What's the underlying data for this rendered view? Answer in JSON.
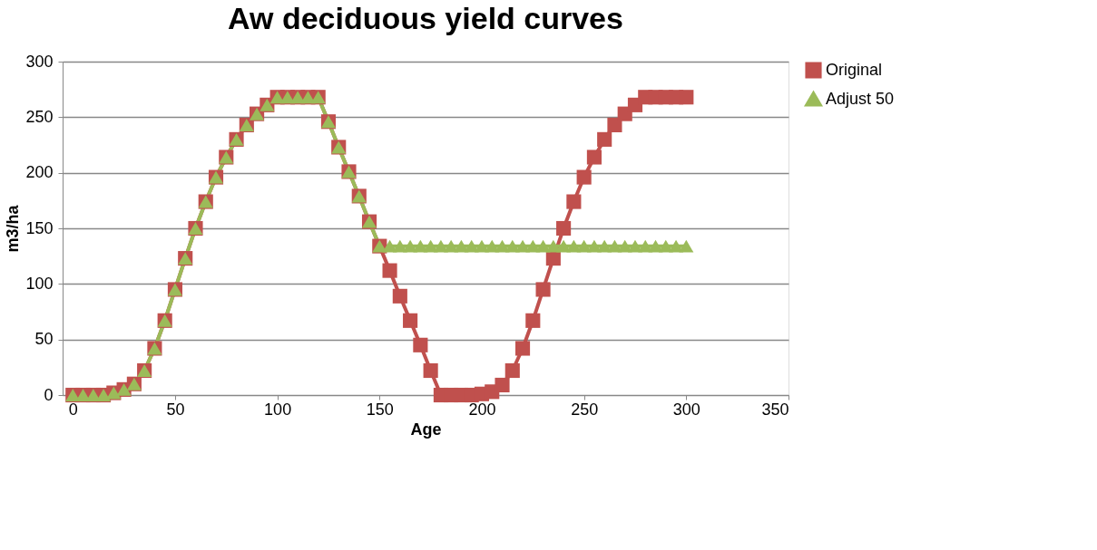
{
  "chart_data": {
    "type": "line",
    "title": "Aw deciduous yield curves",
    "xlabel": "Age",
    "ylabel": "m3/ha",
    "x": [
      0,
      5,
      10,
      15,
      20,
      25,
      30,
      35,
      40,
      45,
      50,
      55,
      60,
      65,
      70,
      75,
      80,
      85,
      90,
      95,
      100,
      105,
      110,
      115,
      120,
      125,
      130,
      135,
      140,
      145,
      150,
      155,
      160,
      165,
      170,
      175,
      180,
      185,
      190,
      195,
      200,
      205,
      210,
      215,
      220,
      225,
      230,
      235,
      240,
      245,
      250,
      255,
      260,
      265,
      270,
      275,
      280,
      285,
      290,
      295,
      300
    ],
    "series": [
      {
        "name": "Original",
        "color": "#c0504d",
        "marker": "square",
        "values": [
          0,
          0,
          0,
          0,
          2,
          5,
          10,
          22,
          42,
          67,
          95,
          123,
          150,
          174,
          196,
          214,
          230,
          243,
          253,
          261,
          268,
          268,
          268,
          268,
          268,
          246,
          223,
          201,
          179,
          156,
          134,
          112,
          89,
          67,
          45,
          22,
          0,
          0,
          0,
          0,
          1,
          3,
          9,
          22,
          42,
          67,
          95,
          123,
          150,
          174,
          196,
          214,
          230,
          243,
          253,
          261,
          268,
          268,
          268,
          268,
          268
        ]
      },
      {
        "name": "Adjust 50",
        "color": "#9bbb59",
        "marker": "triangle",
        "values": [
          0,
          0,
          0,
          0,
          2,
          5,
          10,
          22,
          42,
          67,
          95,
          123,
          150,
          174,
          196,
          214,
          230,
          243,
          253,
          261,
          268,
          268,
          268,
          268,
          268,
          246,
          223,
          201,
          179,
          156,
          134,
          134,
          134,
          134,
          134,
          134,
          134,
          134,
          134,
          134,
          134,
          134,
          134,
          134,
          134,
          134,
          134,
          134,
          134,
          134,
          134,
          134,
          134,
          134,
          134,
          134,
          134,
          134,
          134,
          134,
          134
        ]
      }
    ],
    "xlim": [
      -5,
      350
    ],
    "xticks": [
      0,
      50,
      100,
      150,
      200,
      250,
      300,
      350
    ],
    "ylim": [
      0,
      300
    ],
    "yticks": [
      0,
      50,
      100,
      150,
      200,
      250,
      300
    ],
    "grid": "y",
    "legend": "right",
    "line_style": "solid"
  }
}
